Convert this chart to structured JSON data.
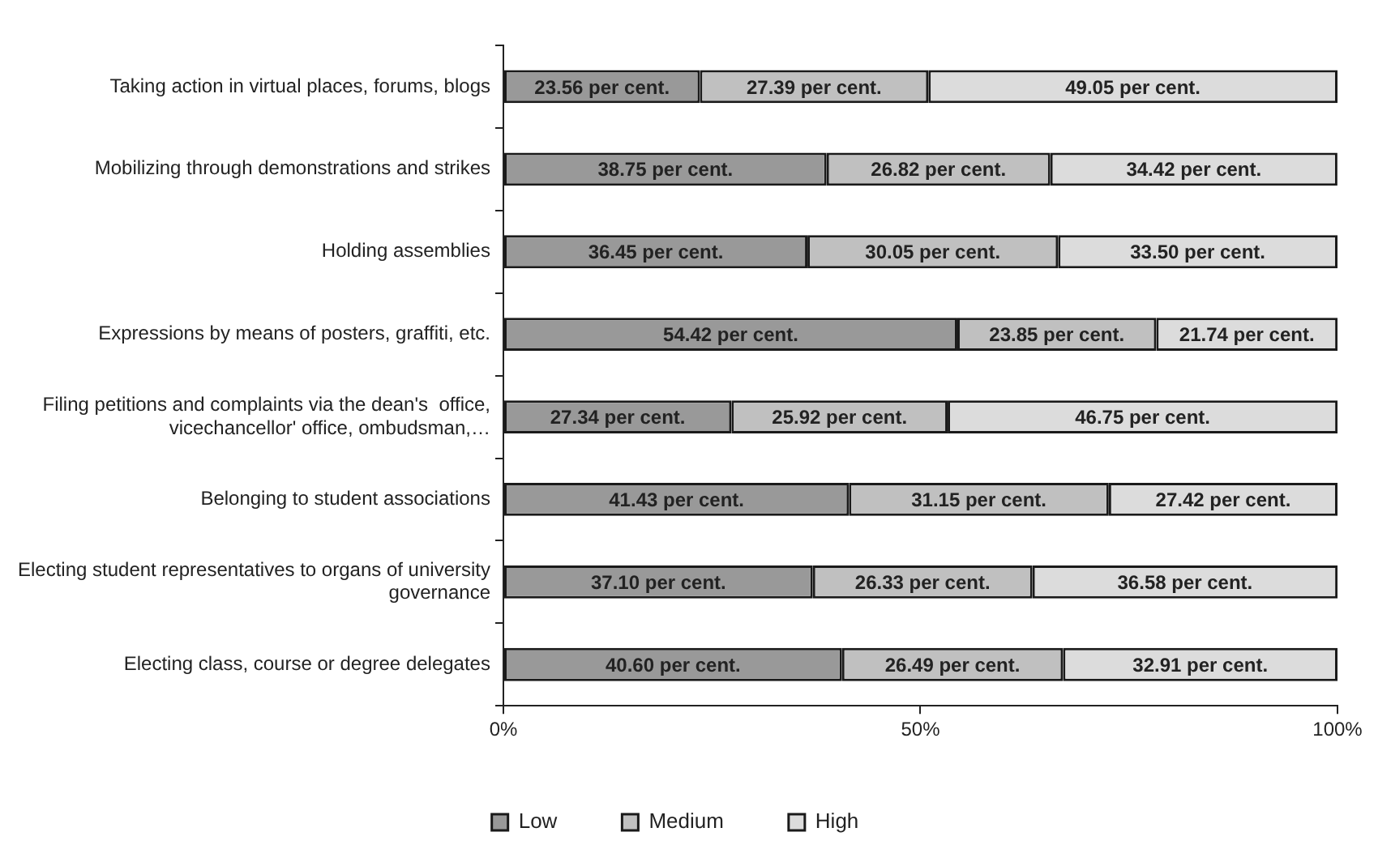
{
  "chart_data": {
    "type": "bar",
    "orientation": "horizontal",
    "stacked": true,
    "categories": [
      "Taking action in virtual places, forums, blogs",
      "Mobilizing through demonstrations and strikes",
      "Holding assemblies",
      "Expressions by means of posters, graffiti, etc.",
      "Filing petitions and complaints via the dean's  office, vicechancellor' office, ombudsman,…",
      "Belonging to student associations",
      "Electing student representatives to organs of university governance",
      "Electing class, course or degree delegates"
    ],
    "series": [
      {
        "name": "Low",
        "color": "#999999",
        "values": [
          23.56,
          38.75,
          36.45,
          54.42,
          27.34,
          41.43,
          37.1,
          40.6
        ],
        "value_labels": [
          "23.56 per cent.",
          "38.75 per cent.",
          "36.45 per cent.",
          "54.42 per cent.",
          "27.34 per cent.",
          "41.43 per cent.",
          "37.10 per cent.",
          "40.60 per cent."
        ]
      },
      {
        "name": "Medium",
        "color": "#c0c0c0",
        "values": [
          27.39,
          26.82,
          30.05,
          23.85,
          25.92,
          31.15,
          26.33,
          26.49
        ],
        "value_labels": [
          "27.39 per cent.",
          "26.82 per cent.",
          "30.05 per cent.",
          "23.85 per cent.",
          "25.92 per cent.",
          "31.15 per cent.",
          "26.33 per cent.",
          "26.49 per cent."
        ]
      },
      {
        "name": "High",
        "color": "#dcdcdc",
        "values": [
          49.05,
          34.42,
          33.5,
          21.74,
          46.75,
          27.42,
          36.58,
          32.91
        ],
        "value_labels": [
          "49.05 per cent.",
          "34.42 per cent.",
          "33.50 per cent.",
          "21.74 per cent.",
          "46.75 per cent.",
          "27.42 per cent.",
          "36.58 per cent.",
          "32.91 per cent."
        ]
      }
    ],
    "xlim": [
      0,
      100
    ],
    "xticks": [
      {
        "value": 0,
        "label": "0%"
      },
      {
        "value": 50,
        "label": "50%"
      },
      {
        "value": 100,
        "label": "100%"
      }
    ],
    "grid": false,
    "legend": "bottom"
  }
}
